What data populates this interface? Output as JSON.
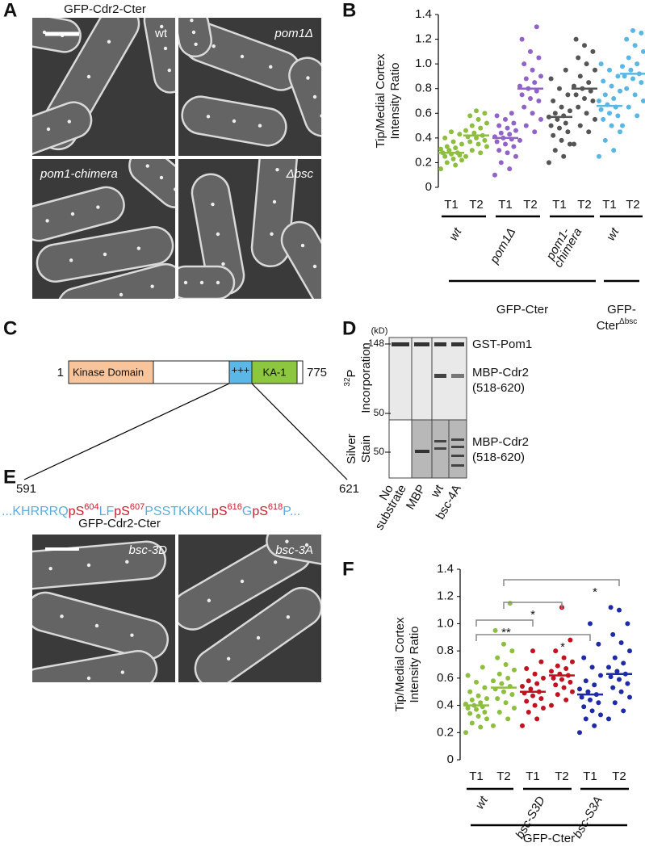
{
  "panel_a": {
    "label": "A",
    "title": "GFP-Cdr2-Cter",
    "image_labels": [
      "wt",
      "pom1Δ",
      "pom1-chimera",
      "Δbsc"
    ]
  },
  "panel_c": {
    "label": "C",
    "domains": [
      "Kinase Domain",
      "+++",
      "KA-1"
    ],
    "start": 1,
    "end": 775,
    "region_start": 591,
    "region_end": 621,
    "sequence": [
      {
        "text": "...KHRRRQ",
        "color": "#5aaedb"
      },
      {
        "text": "pS",
        "sup": "604",
        "color": "#d0192b"
      },
      {
        "text": "LF",
        "color": "#5aaedb"
      },
      {
        "text": "pS",
        "sup": "607",
        "color": "#d0192b"
      },
      {
        "text": "PSSTKKKL",
        "color": "#5aaedb"
      },
      {
        "text": "pS",
        "sup": "616",
        "color": "#d0192b"
      },
      {
        "text": "G",
        "color": "#5aaedb"
      },
      {
        "text": "pS",
        "sup": "618",
        "color": "#d0192b"
      },
      {
        "text": "P...",
        "color": "#5aaedb"
      }
    ]
  },
  "panel_d": {
    "label": "D",
    "unit": "(kD)",
    "blot_markers": [
      148,
      50
    ],
    "stain_marker": 50,
    "blot_label": {
      "isotope": "32",
      "element": "P",
      "word": "Incorporation"
    },
    "stain_label": [
      "Silver",
      "Stain"
    ],
    "blot_bands": [
      "GST-Pom1",
      [
        "MBP-Cdr2",
        "(518-620)"
      ]
    ],
    "stain_band": [
      "MBP-Cdr2",
      "(518-620)"
    ],
    "lanes": [
      [
        "No",
        "substrate"
      ],
      "MBP",
      "wt",
      "bsc-4A"
    ]
  },
  "panel_e": {
    "label": "E",
    "title": "GFP-Cdr2-Cter",
    "image_labels": [
      "bsc-3D",
      "bsc-3A"
    ]
  },
  "chart_data": [
    {
      "type": "dot",
      "label": "B",
      "ylabel": [
        "Tip/Medial Cortex",
        "Intensity Ratio"
      ],
      "ylim": [
        0,
        1.4
      ],
      "yticks": [
        0,
        0.2,
        0.4,
        0.6,
        0.8,
        {
          "value": 1,
          "label": "1.0"
        },
        1.2,
        1.4
      ],
      "categories": [
        "T1",
        "T2",
        "T1",
        "T2",
        "T1",
        "T2",
        "T1",
        "T2"
      ],
      "colors": [
        "#8dbe3f",
        "#8dbe3f",
        "#9163c9",
        "#9163c9",
        "#555555",
        "#555555",
        "#5ab6e2",
        "#5ab6e2"
      ],
      "points": [
        [
          0.15,
          0.18,
          0.2,
          0.22,
          0.23,
          0.25,
          0.26,
          0.27,
          0.28,
          0.28,
          0.3,
          0.31,
          0.32,
          0.33,
          0.35,
          0.37,
          0.4,
          0.43,
          0.45
        ],
        [
          0.25,
          0.28,
          0.3,
          0.33,
          0.35,
          0.37,
          0.38,
          0.4,
          0.41,
          0.42,
          0.44,
          0.46,
          0.48,
          0.5,
          0.52,
          0.55,
          0.58,
          0.6,
          0.62
        ],
        [
          0.1,
          0.15,
          0.2,
          0.25,
          0.28,
          0.3,
          0.33,
          0.35,
          0.37,
          0.39,
          0.4,
          0.41,
          0.43,
          0.44,
          0.46,
          0.48,
          0.5,
          0.52,
          0.55,
          0.58,
          0.6
        ],
        [
          0.38,
          0.45,
          0.5,
          0.55,
          0.6,
          0.65,
          0.7,
          0.72,
          0.75,
          0.78,
          0.8,
          0.82,
          0.85,
          0.88,
          0.9,
          0.95,
          1.0,
          1.05,
          1.1,
          1.2,
          1.3
        ],
        [
          0.2,
          0.25,
          0.3,
          0.35,
          0.38,
          0.42,
          0.45,
          0.48,
          0.5,
          0.52,
          0.55,
          0.57,
          0.58,
          0.6,
          0.62,
          0.65,
          0.7,
          0.75,
          0.8,
          0.88,
          0.95
        ],
        [
          0.35,
          0.45,
          0.5,
          0.55,
          0.6,
          0.65,
          0.7,
          0.72,
          0.75,
          0.78,
          0.8,
          0.82,
          0.85,
          0.9,
          0.95,
          1.0,
          1.05,
          1.1,
          1.15,
          1.2
        ],
        [
          0.25,
          0.3,
          0.38,
          0.45,
          0.5,
          0.55,
          0.58,
          0.6,
          0.63,
          0.65,
          0.67,
          0.7,
          0.72,
          0.75,
          0.78,
          0.82,
          0.86,
          0.9,
          0.95,
          1.0
        ],
        [
          0.5,
          0.58,
          0.65,
          0.7,
          0.75,
          0.8,
          0.85,
          0.88,
          0.9,
          0.92,
          0.95,
          0.98,
          1.0,
          1.05,
          1.1,
          1.15,
          1.2,
          1.25,
          1.27
        ]
      ],
      "means": [
        0.28,
        0.42,
        0.4,
        0.8,
        0.57,
        0.8,
        0.66,
        0.92
      ],
      "groups": [
        "wt",
        "pom1Δ",
        [
          "pom1-",
          "chimera"
        ],
        "wt"
      ],
      "conditions": [
        {
          "name": "GFP-Cter"
        },
        {
          "name": [
            "GFP-",
            "Cter"
          ],
          "sup": "Δbsc"
        }
      ]
    },
    {
      "type": "dot",
      "label": "F",
      "ylabel": [
        "Tip/Medial Cortex",
        "Intensity Ratio"
      ],
      "ylim": [
        0,
        1.4
      ],
      "yticks": [
        0,
        0.2,
        0.4,
        0.6,
        0.8,
        {
          "value": 1,
          "label": "1.0"
        },
        1.2,
        1.4
      ],
      "categories": [
        "T1",
        "T2",
        "T1",
        "T2",
        "T1",
        "T2"
      ],
      "colors": [
        "#8dbe3f",
        "#8dbe3f",
        "#c0121f",
        "#c0121f",
        "#1f2aa6",
        "#1f2aa6"
      ],
      "points": [
        [
          0.2,
          0.24,
          0.27,
          0.3,
          0.32,
          0.34,
          0.35,
          0.37,
          0.38,
          0.39,
          0.4,
          0.41,
          0.42,
          0.44,
          0.45,
          0.47,
          0.5,
          0.53,
          0.57,
          0.62,
          0.68
        ],
        [
          0.25,
          0.3,
          0.35,
          0.38,
          0.42,
          0.45,
          0.48,
          0.5,
          0.52,
          0.54,
          0.56,
          0.58,
          0.6,
          0.63,
          0.66,
          0.7,
          0.75,
          0.8,
          0.85,
          0.95,
          1.15
        ],
        [
          0.25,
          0.3,
          0.35,
          0.38,
          0.4,
          0.43,
          0.45,
          0.47,
          0.49,
          0.5,
          0.52,
          0.54,
          0.56,
          0.58,
          0.6,
          0.63,
          0.67,
          0.72,
          0.8
        ],
        [
          0.4,
          0.44,
          0.48,
          0.5,
          0.53,
          0.55,
          0.57,
          0.59,
          0.6,
          0.62,
          0.63,
          0.65,
          0.67,
          0.69,
          0.72,
          0.75,
          0.8,
          0.88,
          1.12
        ],
        [
          0.2,
          0.25,
          0.3,
          0.33,
          0.36,
          0.39,
          0.42,
          0.44,
          0.46,
          0.48,
          0.5,
          0.52,
          0.55,
          0.58,
          0.62,
          0.68,
          0.75,
          0.85,
          1.0
        ],
        [
          0.3,
          0.36,
          0.42,
          0.46,
          0.5,
          0.53,
          0.56,
          0.59,
          0.61,
          0.63,
          0.65,
          0.68,
          0.71,
          0.75,
          0.8,
          0.86,
          0.92,
          1.0,
          1.1,
          1.12
        ]
      ],
      "means": [
        0.4,
        0.53,
        0.5,
        0.62,
        0.48,
        0.63
      ],
      "groups": [
        "wt",
        "bsc-S3D",
        "bsc-S3A"
      ],
      "conditions": [
        {
          "name": "GFP-Cter"
        }
      ],
      "annotations": [
        "*",
        "*",
        "**",
        "*"
      ]
    }
  ]
}
